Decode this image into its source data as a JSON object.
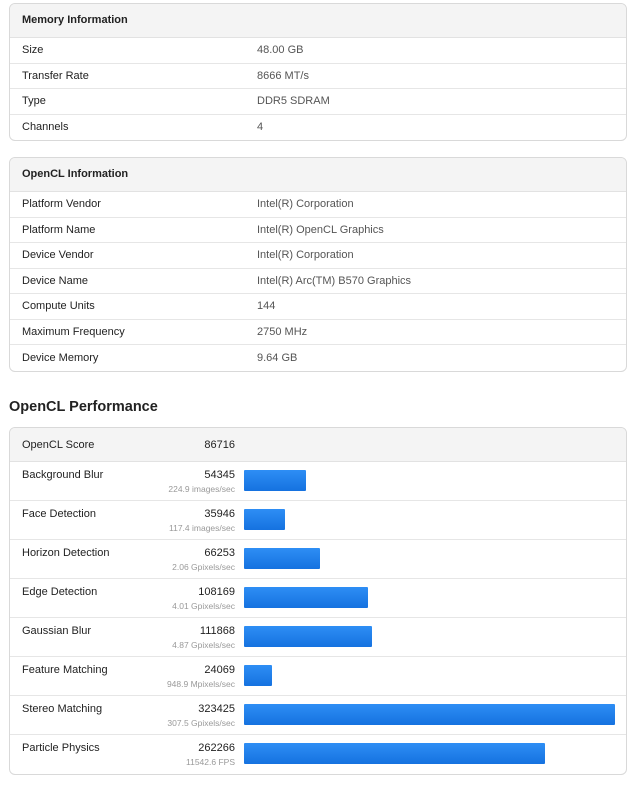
{
  "memory": {
    "title": "Memory Information",
    "rows": [
      {
        "key": "Size",
        "value": "48.00 GB"
      },
      {
        "key": "Transfer Rate",
        "value": "8666 MT/s"
      },
      {
        "key": "Type",
        "value": "DDR5 SDRAM"
      },
      {
        "key": "Channels",
        "value": "4"
      }
    ]
  },
  "opencl_info": {
    "title": "OpenCL Information",
    "rows": [
      {
        "key": "Platform Vendor",
        "value": "Intel(R) Corporation"
      },
      {
        "key": "Platform Name",
        "value": "Intel(R) OpenCL Graphics"
      },
      {
        "key": "Device Vendor",
        "value": "Intel(R) Corporation"
      },
      {
        "key": "Device Name",
        "value": "Intel(R) Arc(TM) B570 Graphics"
      },
      {
        "key": "Compute Units",
        "value": "144"
      },
      {
        "key": "Maximum Frequency",
        "value": "2750 MHz"
      },
      {
        "key": "Device Memory",
        "value": "9.64 GB"
      }
    ]
  },
  "performance": {
    "title": "OpenCL Performance",
    "score_label": "OpenCL Score",
    "score": "86716",
    "bar_color": "#1f7fee",
    "max_score": 323425,
    "rows": [
      {
        "name": "Background Blur",
        "score": "54345",
        "rate": "224.9 images/sec",
        "value": 54345
      },
      {
        "name": "Face Detection",
        "score": "35946",
        "rate": "117.4 images/sec",
        "value": 35946
      },
      {
        "name": "Horizon Detection",
        "score": "66253",
        "rate": "2.06 Gpixels/sec",
        "value": 66253
      },
      {
        "name": "Edge Detection",
        "score": "108169",
        "rate": "4.01 Gpixels/sec",
        "value": 108169
      },
      {
        "name": "Gaussian Blur",
        "score": "111868",
        "rate": "4.87 Gpixels/sec",
        "value": 111868
      },
      {
        "name": "Feature Matching",
        "score": "24069",
        "rate": "948.9 Mpixels/sec",
        "value": 24069
      },
      {
        "name": "Stereo Matching",
        "score": "323425",
        "rate": "307.5 Gpixels/sec",
        "value": 323425
      },
      {
        "name": "Particle Physics",
        "score": "262266",
        "rate": "11542.6 FPS",
        "value": 262266
      }
    ]
  }
}
